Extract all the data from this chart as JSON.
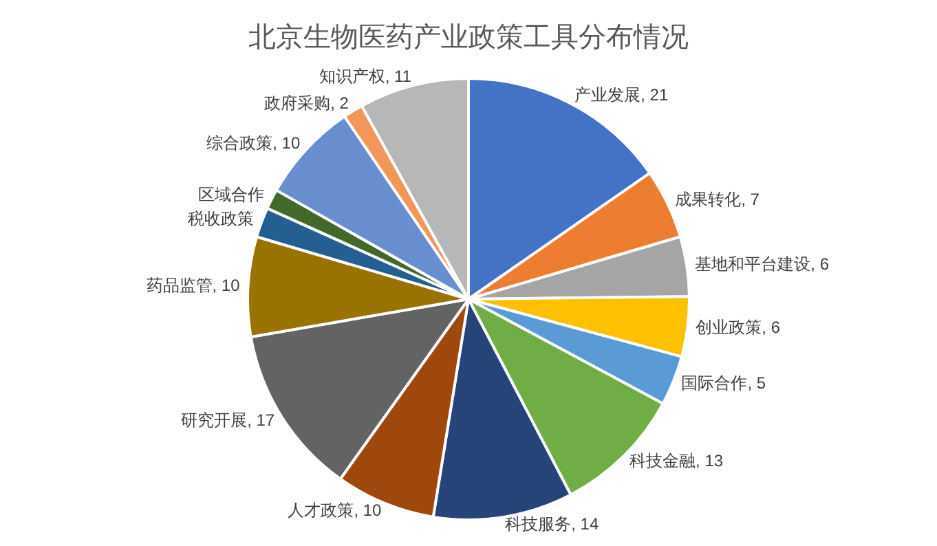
{
  "chart_data": {
    "type": "pie",
    "title": "北京生物医药产业政策工具分布情况",
    "categories": [
      "产业发展",
      "成果转化",
      "基地和平台建设",
      "创业政策",
      "国际合作",
      "科技金融",
      "科技服务",
      "人才政策",
      "研究开展",
      "药品监管",
      "税收政策",
      "区域合作",
      "综合政策",
      "政府采购",
      "知识产权"
    ],
    "values": [
      21,
      7,
      6,
      6,
      5,
      13,
      14,
      10,
      17,
      10,
      3,
      2,
      10,
      2,
      11
    ],
    "value_labels": [
      "21",
      "7",
      "6",
      "6",
      "5",
      "13",
      "14",
      "10",
      "17",
      "10",
      null,
      null,
      "10",
      "2",
      "11"
    ],
    "colors": [
      "#4472c4",
      "#ed7d31",
      "#a5a5a5",
      "#ffc000",
      "#5b9bd5",
      "#70ad47",
      "#264478",
      "#9e480e",
      "#636363",
      "#997300",
      "#255e91",
      "#43682b",
      "#698ed0",
      "#f1975a",
      "#b7b7b7"
    ],
    "legend": false
  }
}
